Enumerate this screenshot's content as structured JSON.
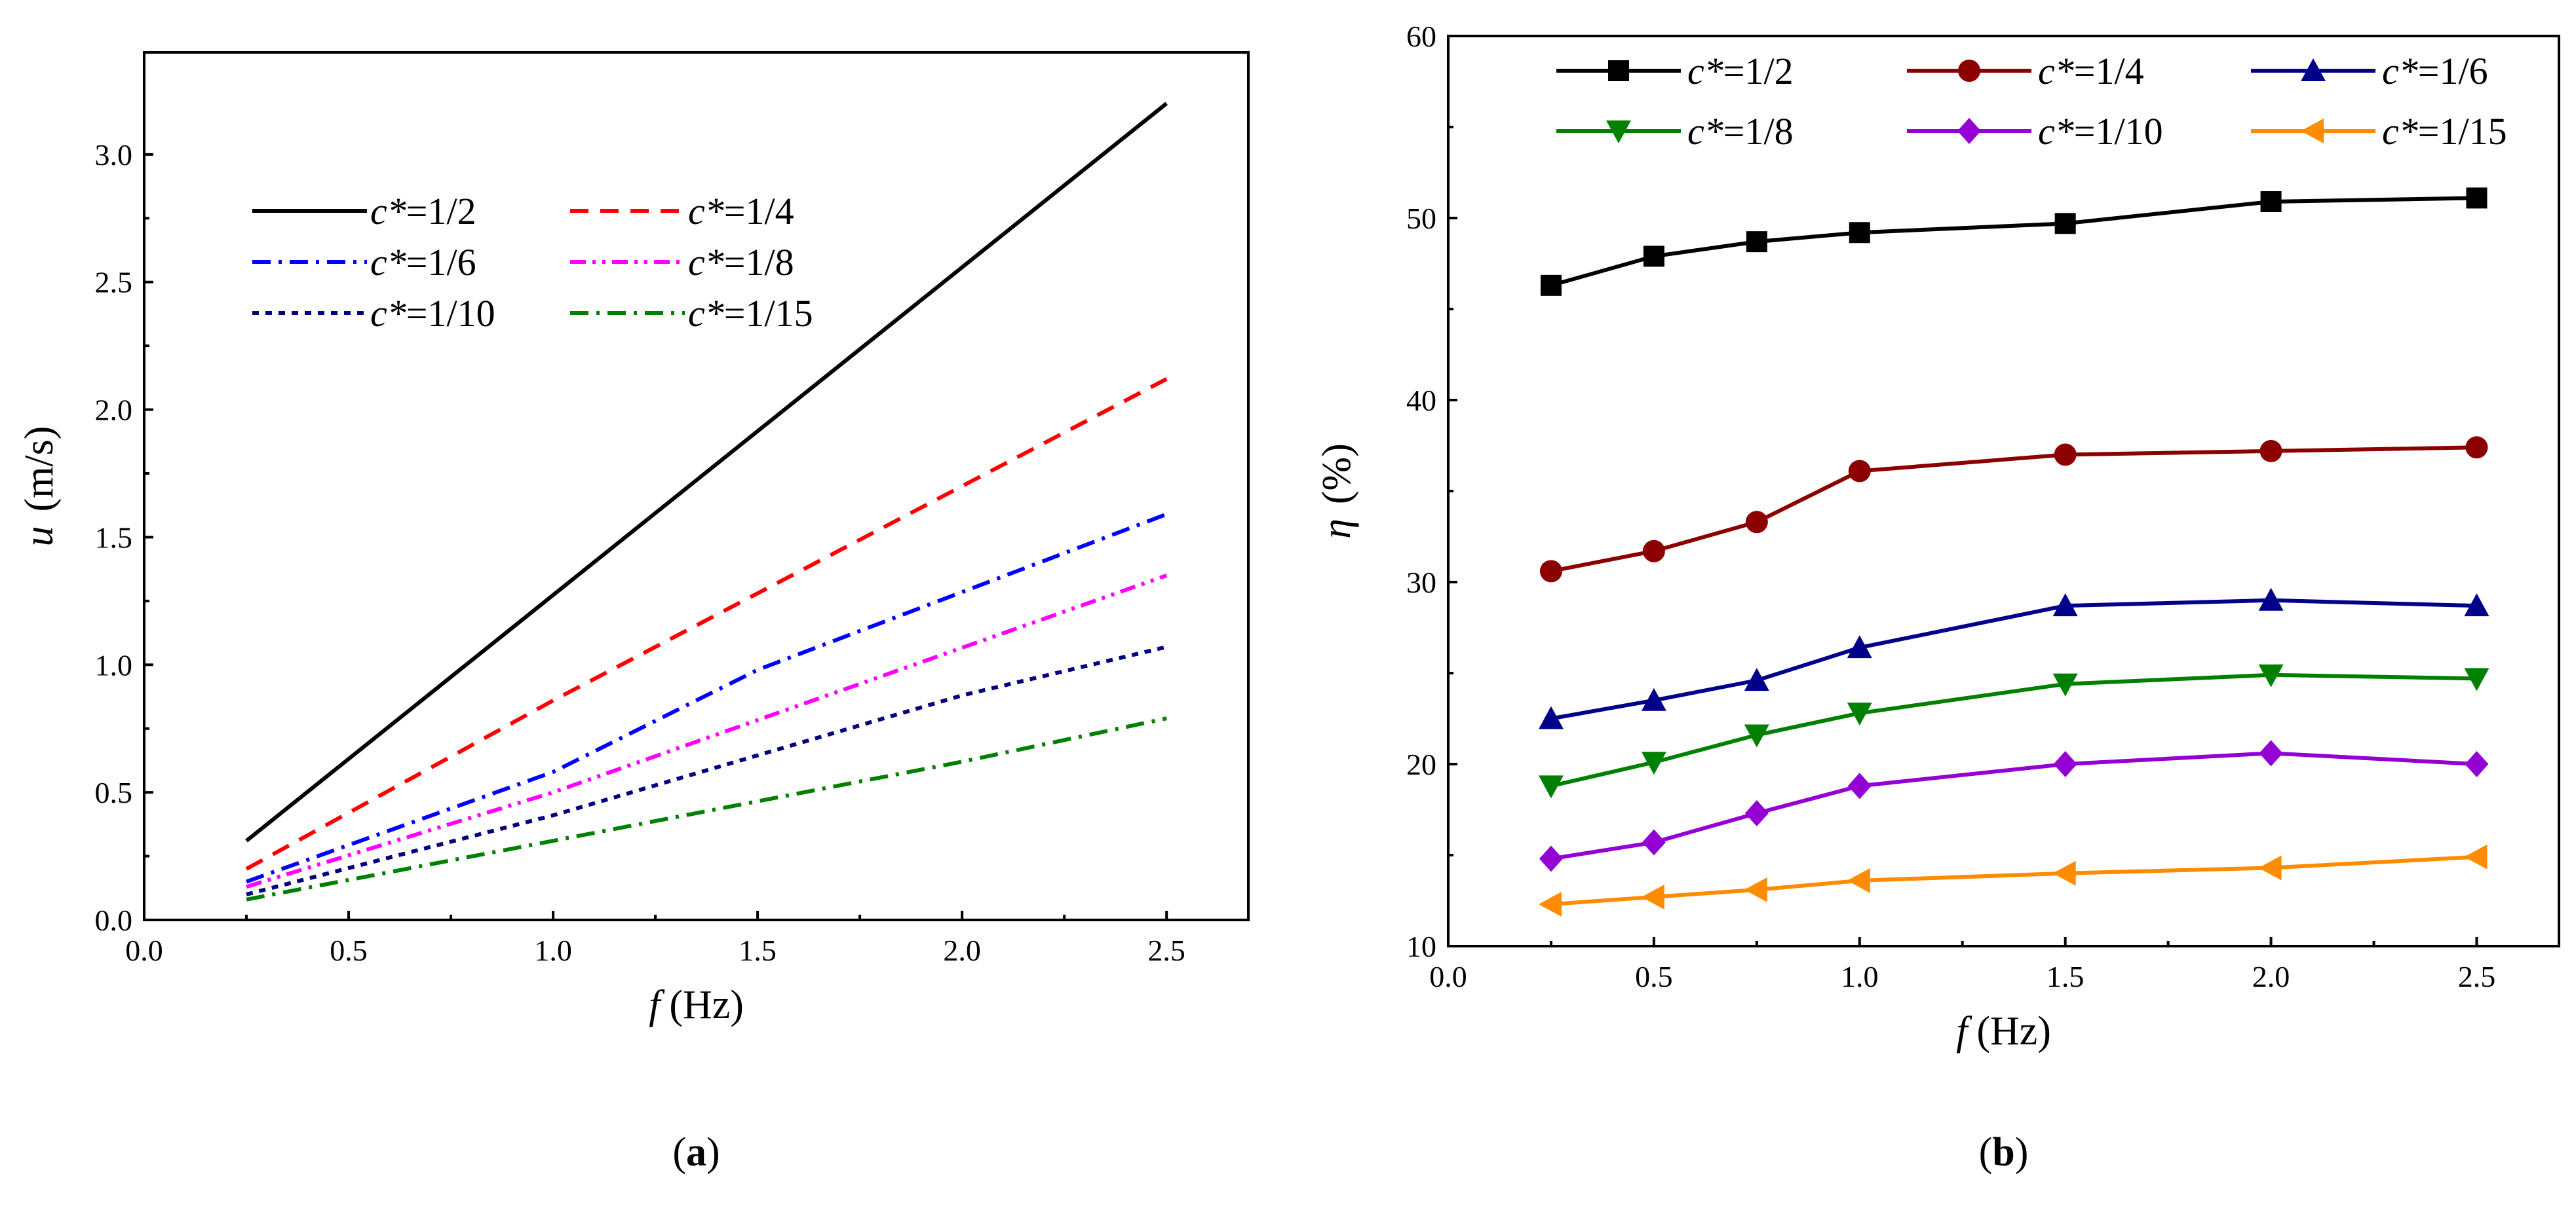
{
  "chart_data": [
    {
      "panel": "(a)",
      "panel_letter": "a",
      "type": "line",
      "title": "",
      "xlabel": {
        "var": "f",
        "unit": "(Hz)"
      },
      "ylabel": {
        "var": "u",
        "unit": "(m/s)"
      },
      "xlim": [
        0.0,
        2.7
      ],
      "ylim": [
        0.0,
        3.4
      ],
      "xticks": [
        "0.0",
        "0.5",
        "1.0",
        "1.5",
        "2.0",
        "2.5"
      ],
      "yticks": [
        "0.0",
        "0.5",
        "1.0",
        "1.5",
        "2.0",
        "2.5",
        "3.0"
      ],
      "legend_position": "top-left",
      "series": [
        {
          "name": "c*=1/2",
          "prefix": "c*",
          "value": "=1/2",
          "color": "#000000",
          "style": "solid",
          "x": [
            0.25,
            2.5
          ],
          "y": [
            0.31,
            3.2
          ]
        },
        {
          "name": "c*=1/4",
          "prefix": "c*",
          "value": "=1/4",
          "color": "#ff0000",
          "style": "dash",
          "x": [
            0.25,
            1.0,
            2.5
          ],
          "y": [
            0.2,
            0.86,
            2.12
          ]
        },
        {
          "name": "c*=1/6",
          "prefix": "c*",
          "value": "=1/6",
          "color": "#0000ff",
          "style": "dashdot",
          "x": [
            0.25,
            1.0,
            1.5,
            2.5
          ],
          "y": [
            0.15,
            0.58,
            0.98,
            1.59
          ]
        },
        {
          "name": "c*=1/8",
          "prefix": "c*",
          "value": "=1/8",
          "color": "#ff00ff",
          "style": "dashdotdot",
          "x": [
            0.25,
            1.0,
            2.5
          ],
          "y": [
            0.13,
            0.5,
            1.35
          ]
        },
        {
          "name": "c*=1/10",
          "prefix": "c*",
          "value": "=1/10",
          "color": "#000080",
          "style": "shortdash",
          "x": [
            0.25,
            1.0,
            2.0,
            2.5
          ],
          "y": [
            0.1,
            0.41,
            0.88,
            1.07
          ]
        },
        {
          "name": "c*=1/15",
          "prefix": "c*",
          "value": "=1/15",
          "color": "#008000",
          "style": "dashdot",
          "x": [
            0.25,
            1.0,
            2.0,
            2.5
          ],
          "y": [
            0.08,
            0.31,
            0.62,
            0.79
          ]
        }
      ]
    },
    {
      "panel": "(b)",
      "panel_letter": "b",
      "type": "line",
      "title": "",
      "xlabel": {
        "var": "f",
        "unit": "(Hz)"
      },
      "ylabel": {
        "var": "η",
        "unit": "(%)"
      },
      "xlim": [
        0.0,
        2.7
      ],
      "ylim": [
        10,
        60
      ],
      "xticks": [
        "0.0",
        "0.5",
        "1.0",
        "1.5",
        "2.0",
        "2.5"
      ],
      "yticks": [
        "10",
        "20",
        "30",
        "40",
        "50",
        "60"
      ],
      "legend_position": "top",
      "x": [
        0.25,
        0.5,
        0.75,
        1.0,
        1.5,
        2.0,
        2.5
      ],
      "series": [
        {
          "name": "c*=1/2",
          "prefix": "c*",
          "value": "=1/2",
          "color": "#000000",
          "marker": "square",
          "values": [
            46.3,
            47.9,
            48.7,
            49.2,
            49.7,
            50.9,
            51.1
          ]
        },
        {
          "name": "c*=1/4",
          "prefix": "c*",
          "value": "=1/4",
          "color": "#8b0000",
          "marker": "circle",
          "values": [
            30.6,
            31.7,
            33.3,
            36.1,
            37.0,
            37.2,
            37.4
          ]
        },
        {
          "name": "c*=1/6",
          "prefix": "c*",
          "value": "=1/6",
          "color": "#00008b",
          "marker": "triangle-up",
          "values": [
            22.5,
            23.5,
            24.6,
            26.4,
            28.7,
            29.0,
            28.7
          ]
        },
        {
          "name": "c*=1/8",
          "prefix": "c*",
          "value": "=1/8",
          "color": "#008000",
          "marker": "triangle-down",
          "values": [
            18.8,
            20.1,
            21.6,
            22.8,
            24.4,
            24.9,
            24.7
          ]
        },
        {
          "name": "c*=1/10",
          "prefix": "c*",
          "value": "=1/10",
          "color": "#9400d3",
          "marker": "diamond",
          "values": [
            14.8,
            15.7,
            17.3,
            18.8,
            20.0,
            20.6,
            20.0
          ]
        },
        {
          "name": "c*=1/15",
          "prefix": "c*",
          "value": "=1/15",
          "color": "#ff8c00",
          "marker": "triangle-left",
          "values": [
            12.3,
            12.7,
            13.1,
            13.6,
            14.0,
            14.3,
            14.9
          ]
        }
      ]
    }
  ]
}
